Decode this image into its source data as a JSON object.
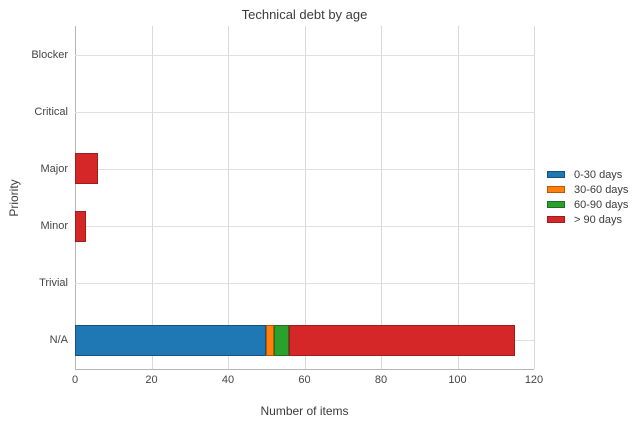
{
  "chart_data": {
    "type": "bar",
    "orientation": "horizontal",
    "stacked": true,
    "title": "Technical debt by age",
    "xlabel": "Number of items",
    "ylabel": "Priority",
    "categories": [
      "Blocker",
      "Critical",
      "Major",
      "Minor",
      "Trivial",
      "N/A"
    ],
    "series": [
      {
        "name": "0-30 days",
        "color": "#1f77b4",
        "border_color": "#15527e",
        "values": [
          0,
          0,
          0,
          0,
          0,
          50
        ]
      },
      {
        "name": "30-60 days",
        "color": "#ff7f0e",
        "border_color": "#b55a00",
        "values": [
          0,
          0,
          0,
          0,
          0,
          2
        ]
      },
      {
        "name": "60-90 days",
        "color": "#2ca02c",
        "border_color": "#1d701d",
        "values": [
          0,
          0,
          0,
          0,
          0,
          4
        ]
      },
      {
        "name": "> 90 days",
        "color": "#d62728",
        "border_color": "#9e1c1c",
        "values": [
          0,
          0,
          6,
          3,
          0,
          59
        ]
      }
    ],
    "totals_by_category": [
      0,
      0,
      6,
      3,
      0,
      115
    ],
    "xlim": [
      0,
      120
    ],
    "xticks": [
      0,
      20,
      40,
      60,
      80,
      100,
      120
    ],
    "grid": true,
    "legend_position": "right"
  },
  "colors": {
    "background": "#ffffff",
    "gridline": "#e0e0e0",
    "axis_line": "#b5b5b5",
    "text": "#3b3b3b",
    "tick_text": "#444444"
  }
}
